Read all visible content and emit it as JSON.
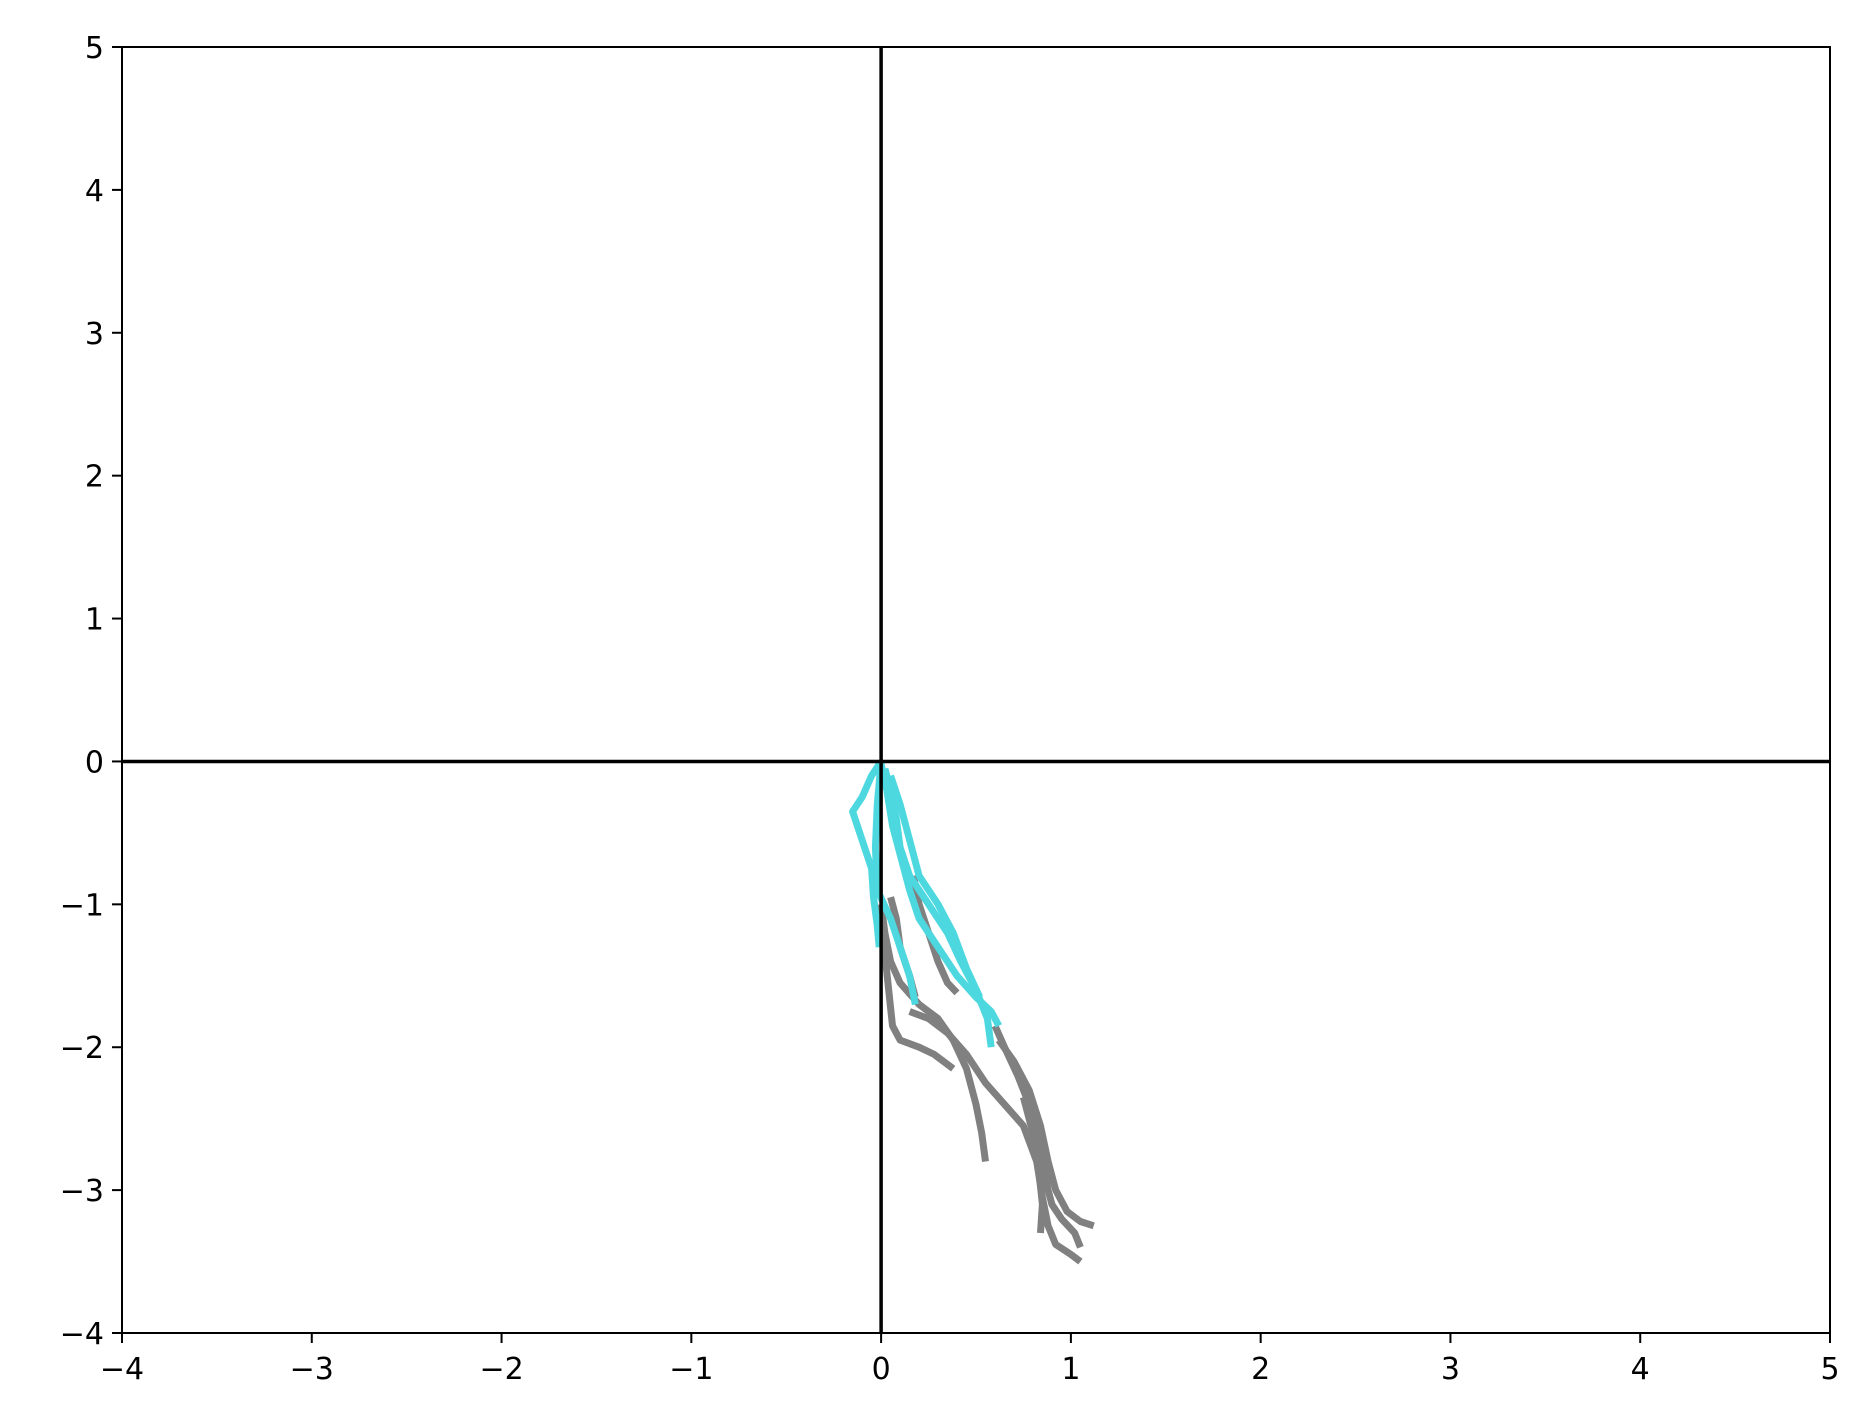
{
  "chart_data": {
    "type": "line",
    "title": "",
    "xlabel": "",
    "ylabel": "",
    "xlim": [
      -4,
      5
    ],
    "ylim": [
      -4,
      5
    ],
    "xticks": [
      -4,
      -3,
      -2,
      -1,
      0,
      1,
      2,
      3,
      4,
      5
    ],
    "yticks": [
      -4,
      -3,
      -2,
      -1,
      0,
      1,
      2,
      3,
      4,
      5
    ],
    "xtick_labels": [
      "−4",
      "−3",
      "−2",
      "−1",
      "0",
      "1",
      "2",
      "3",
      "4",
      "5"
    ],
    "ytick_labels": [
      "−4",
      "−3",
      "−2",
      "−1",
      "0",
      "1",
      "2",
      "3",
      "4",
      "5"
    ],
    "grid": false,
    "reference_lines": {
      "x": 0,
      "y": 0,
      "color": "#000000"
    },
    "series_colors": {
      "gray": "#808080",
      "cyan": "#4dd8e0"
    },
    "series": [
      {
        "color": "gray",
        "points": [
          [
            0.0,
            -1.0
          ],
          [
            0.02,
            -1.2
          ],
          [
            0.05,
            -1.4
          ],
          [
            0.1,
            -1.55
          ],
          [
            0.2,
            -1.7
          ],
          [
            0.3,
            -1.8
          ],
          [
            0.38,
            -1.95
          ],
          [
            0.45,
            -2.15
          ],
          [
            0.5,
            -2.4
          ],
          [
            0.53,
            -2.6
          ],
          [
            0.55,
            -2.8
          ]
        ]
      },
      {
        "color": "gray",
        "points": [
          [
            0.0,
            -1.1
          ],
          [
            0.02,
            -1.35
          ],
          [
            0.04,
            -1.6
          ],
          [
            0.06,
            -1.85
          ],
          [
            0.1,
            -1.95
          ],
          [
            0.2,
            -2.0
          ],
          [
            0.28,
            -2.05
          ],
          [
            0.38,
            -2.15
          ]
        ]
      },
      {
        "color": "gray",
        "points": [
          [
            0.05,
            -0.95
          ],
          [
            0.08,
            -1.1
          ],
          [
            0.1,
            -1.3
          ],
          [
            0.15,
            -1.5
          ],
          [
            0.18,
            -1.65
          ]
        ]
      },
      {
        "color": "gray",
        "points": [
          [
            0.15,
            -1.75
          ],
          [
            0.25,
            -1.8
          ],
          [
            0.35,
            -1.9
          ],
          [
            0.45,
            -2.05
          ],
          [
            0.55,
            -2.25
          ],
          [
            0.65,
            -2.4
          ],
          [
            0.75,
            -2.55
          ],
          [
            0.82,
            -2.8
          ],
          [
            0.85,
            -3.05
          ],
          [
            0.88,
            -3.25
          ],
          [
            0.92,
            -3.38
          ],
          [
            1.0,
            -3.45
          ],
          [
            1.05,
            -3.5
          ]
        ]
      },
      {
        "color": "gray",
        "points": [
          [
            0.17,
            -0.8
          ],
          [
            0.2,
            -1.0
          ],
          [
            0.25,
            -1.2
          ],
          [
            0.3,
            -1.4
          ],
          [
            0.35,
            -1.55
          ],
          [
            0.4,
            -1.62
          ]
        ]
      },
      {
        "color": "gray",
        "points": [
          [
            0.6,
            -1.85
          ],
          [
            0.65,
            -2.0
          ],
          [
            0.72,
            -2.2
          ],
          [
            0.78,
            -2.4
          ],
          [
            0.82,
            -2.6
          ],
          [
            0.86,
            -2.85
          ],
          [
            0.88,
            -3.0
          ],
          [
            0.9,
            -3.1
          ],
          [
            0.95,
            -3.2
          ],
          [
            1.02,
            -3.3
          ],
          [
            1.05,
            -3.4
          ]
        ]
      },
      {
        "color": "gray",
        "points": [
          [
            0.62,
            -1.95
          ],
          [
            0.7,
            -2.1
          ],
          [
            0.78,
            -2.3
          ],
          [
            0.84,
            -2.55
          ],
          [
            0.88,
            -2.8
          ],
          [
            0.92,
            -3.0
          ],
          [
            0.98,
            -3.15
          ],
          [
            1.05,
            -3.22
          ],
          [
            1.12,
            -3.25
          ]
        ]
      },
      {
        "color": "gray",
        "points": [
          [
            0.75,
            -2.35
          ],
          [
            0.8,
            -2.6
          ],
          [
            0.83,
            -2.85
          ],
          [
            0.85,
            -3.1
          ],
          [
            0.84,
            -3.3
          ]
        ]
      },
      {
        "color": "cyan",
        "points": [
          [
            0.0,
            0.0
          ],
          [
            -0.05,
            -0.1
          ],
          [
            -0.1,
            -0.25
          ],
          [
            -0.15,
            -0.35
          ],
          [
            -0.1,
            -0.55
          ],
          [
            -0.05,
            -0.75
          ],
          [
            -0.04,
            -0.95
          ],
          [
            -0.02,
            -1.15
          ],
          [
            -0.01,
            -1.3
          ]
        ]
      },
      {
        "color": "cyan",
        "points": [
          [
            0.02,
            -0.05
          ],
          [
            0.05,
            -0.2
          ],
          [
            0.08,
            -0.4
          ],
          [
            0.1,
            -0.6
          ],
          [
            0.15,
            -0.8
          ],
          [
            0.25,
            -1.0
          ],
          [
            0.35,
            -1.2
          ],
          [
            0.42,
            -1.4
          ],
          [
            0.5,
            -1.6
          ],
          [
            0.56,
            -1.8
          ],
          [
            0.58,
            -2.0
          ]
        ]
      },
      {
        "color": "cyan",
        "points": [
          [
            0.0,
            -0.02
          ],
          [
            0.03,
            -0.2
          ],
          [
            0.06,
            -0.45
          ],
          [
            0.1,
            -0.65
          ],
          [
            0.15,
            -0.9
          ],
          [
            0.2,
            -1.1
          ],
          [
            0.3,
            -1.3
          ],
          [
            0.4,
            -1.5
          ],
          [
            0.5,
            -1.65
          ],
          [
            0.58,
            -1.75
          ],
          [
            0.62,
            -1.85
          ]
        ]
      },
      {
        "color": "cyan",
        "points": [
          [
            0.0,
            0.0
          ],
          [
            -0.02,
            -0.3
          ],
          [
            -0.03,
            -0.6
          ],
          [
            -0.02,
            -0.9
          ],
          [
            0.05,
            -1.1
          ],
          [
            0.1,
            -1.3
          ],
          [
            0.15,
            -1.5
          ],
          [
            0.18,
            -1.7
          ]
        ]
      },
      {
        "color": "cyan",
        "points": [
          [
            0.05,
            -0.1
          ],
          [
            0.1,
            -0.3
          ],
          [
            0.15,
            -0.55
          ],
          [
            0.2,
            -0.8
          ],
          [
            0.3,
            -1.0
          ],
          [
            0.38,
            -1.2
          ],
          [
            0.45,
            -1.45
          ],
          [
            0.52,
            -1.65
          ]
        ]
      }
    ]
  }
}
